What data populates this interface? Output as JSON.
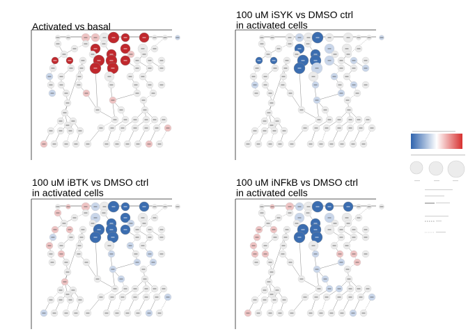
{
  "panels": [
    {
      "id": "activated_vs_basal",
      "title_line1": "Activated vs basal",
      "title_line2": ""
    },
    {
      "id": "isyk_vs_dmso",
      "title_line1": "100 uM iSYK vs DMSO ctrl",
      "title_line2": "in activated cells"
    },
    {
      "id": "ibtk_vs_dmso",
      "title_line1": "100 uM iBTK vs DMSO ctrl",
      "title_line2": "in activated cells"
    },
    {
      "id": "infkb_vs_dmso",
      "title_line1": "100 uM iNFkB vs DMSO ctrl",
      "title_line2": "in activated cells"
    }
  ],
  "colors": {
    "strong_red": "#c0282d",
    "light_red": "#eec3c3",
    "strong_blue": "#3b6db0",
    "light_blue": "#c9d6ea",
    "neutral": "#ebebeb",
    "edge": "#555555"
  }
}
